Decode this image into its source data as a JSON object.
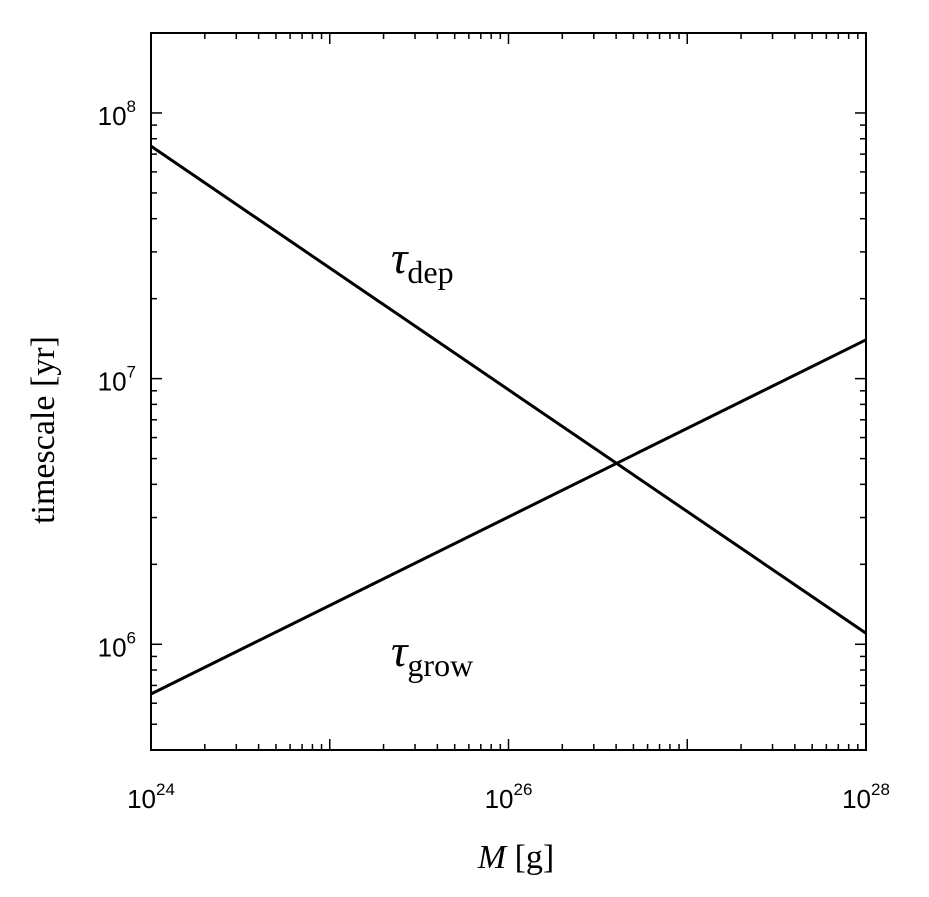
{
  "chart_data": {
    "type": "line",
    "xlabel_var": "M",
    "xlabel_unit": " [g]",
    "ylabel": "timescale [yr]",
    "x_scale": "log",
    "y_scale": "log",
    "xlim": [
      1e+24,
      1e+28
    ],
    "ylim": [
      400000.0,
      200000000.0
    ],
    "grid": false,
    "x_ticks": [
      {
        "value": 1e+24,
        "base": "10",
        "exp": "24"
      },
      {
        "value": 1e+26,
        "base": "10",
        "exp": "26"
      },
      {
        "value": 1e+28,
        "base": "10",
        "exp": "28"
      }
    ],
    "y_ticks": [
      {
        "value": 1000000.0,
        "base": "10",
        "exp": "6"
      },
      {
        "value": 10000000.0,
        "base": "10",
        "exp": "7"
      },
      {
        "value": 100000000.0,
        "base": "10",
        "exp": "8"
      }
    ],
    "series": [
      {
        "symbol": "τ",
        "subscript": "dep",
        "x": [
          1e+24,
          1e+28
        ],
        "y": [
          75000000.0,
          1100000.0
        ],
        "label_at": {
          "x": 2.2e+25,
          "y": 25000000.0
        }
      },
      {
        "symbol": "τ",
        "subscript": "grow",
        "x": [
          1e+24,
          1e+28
        ],
        "y": [
          650000.0,
          14000000.0
        ],
        "label_at": {
          "x": 2.2e+25,
          "y": 830000.0
        }
      }
    ]
  }
}
